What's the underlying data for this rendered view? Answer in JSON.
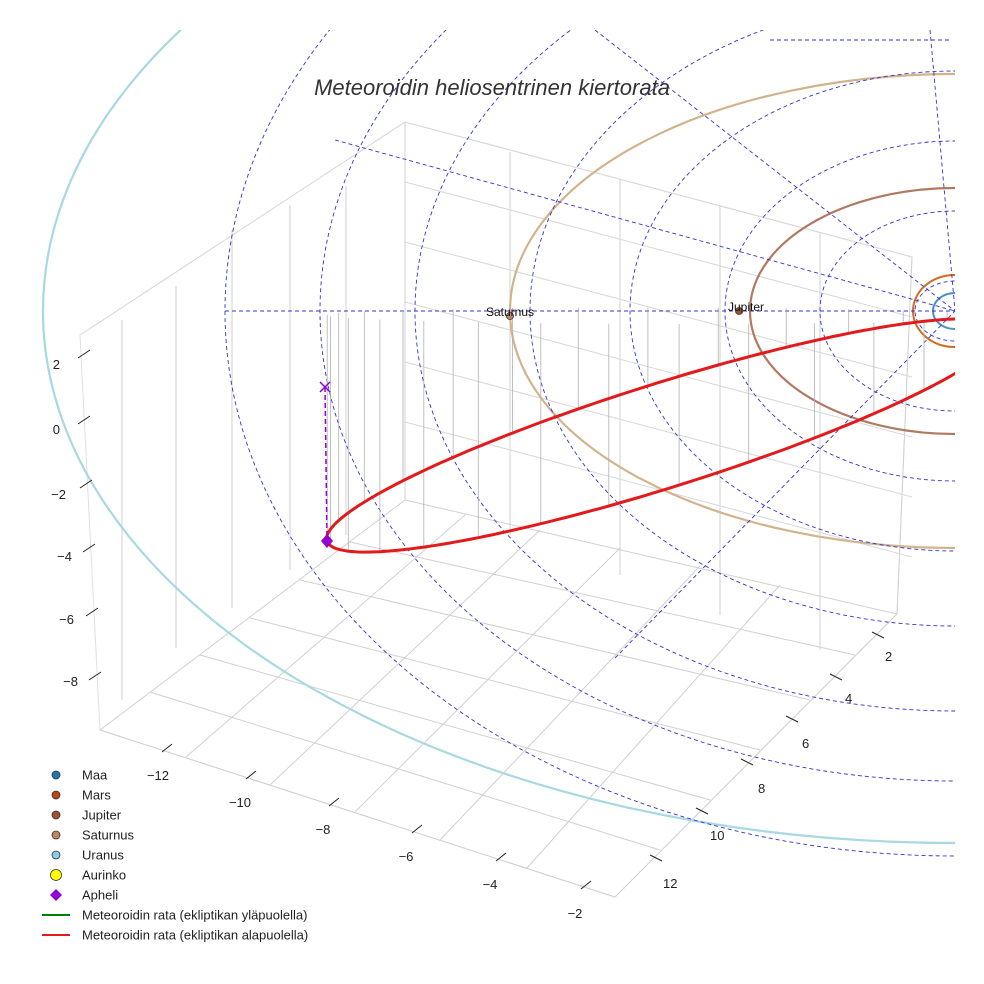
{
  "chart_data": {
    "type": "scatter",
    "projection": "3d",
    "title": "Meteoroidin heliosentrinen kiertorata",
    "xlabel": "",
    "ylabel": "",
    "zlabel": "",
    "x_ticks": [
      -12,
      -10,
      -8,
      -6,
      -4,
      -2
    ],
    "y_ticks": [
      2,
      4,
      6,
      8,
      10,
      12
    ],
    "z_ticks": [
      2,
      0,
      -2,
      -4,
      -6,
      -8
    ],
    "grid": true,
    "legend_position": "bottom-left",
    "planet_labels": [
      {
        "name": "Saturnus",
        "x": -7.8,
        "y": -4.5,
        "z": 0
      },
      {
        "name": "Jupiter",
        "x": -3.6,
        "y": -3.2,
        "z": 0
      }
    ],
    "aphelion": {
      "x": -9.9,
      "y": 3.6,
      "z": -3.6
    },
    "legend": [
      {
        "label": "Maa",
        "marker": "circle",
        "color": "#1f77b4"
      },
      {
        "label": "Mars",
        "marker": "circle",
        "color": "#c1440e"
      },
      {
        "label": "Jupiter",
        "marker": "circle",
        "color": "#a0522d"
      },
      {
        "label": "Saturnus",
        "marker": "circle",
        "color": "#c2875f"
      },
      {
        "label": "Uranus",
        "marker": "circle",
        "color": "#87ceeb"
      },
      {
        "label": "Aurinko",
        "marker": "circle-large",
        "color": "#ffff00"
      },
      {
        "label": "Apheli",
        "marker": "diamond",
        "color": "#9400d3"
      },
      {
        "label": "Meteoroidin rata (ekliptikan yläpuolella)",
        "marker": "line",
        "color": "#008000"
      },
      {
        "label": "Meteoroidin rata (ekliptikan alapuolella)",
        "marker": "line",
        "color": "#e31a1c"
      }
    ]
  },
  "colors": {
    "earth_orbit": "#4a90c8",
    "mars_orbit": "#d2691e",
    "jupiter_orbit": "#b07a60",
    "saturn_orbit": "#d2b48c",
    "uranus_orbit": "#a8d8e0",
    "meteoroid_orbit": "#e31a1c",
    "ecliptic_grid": "#3333cc",
    "axis_grid": "#cccccc",
    "aphelion": "#9400d3"
  }
}
